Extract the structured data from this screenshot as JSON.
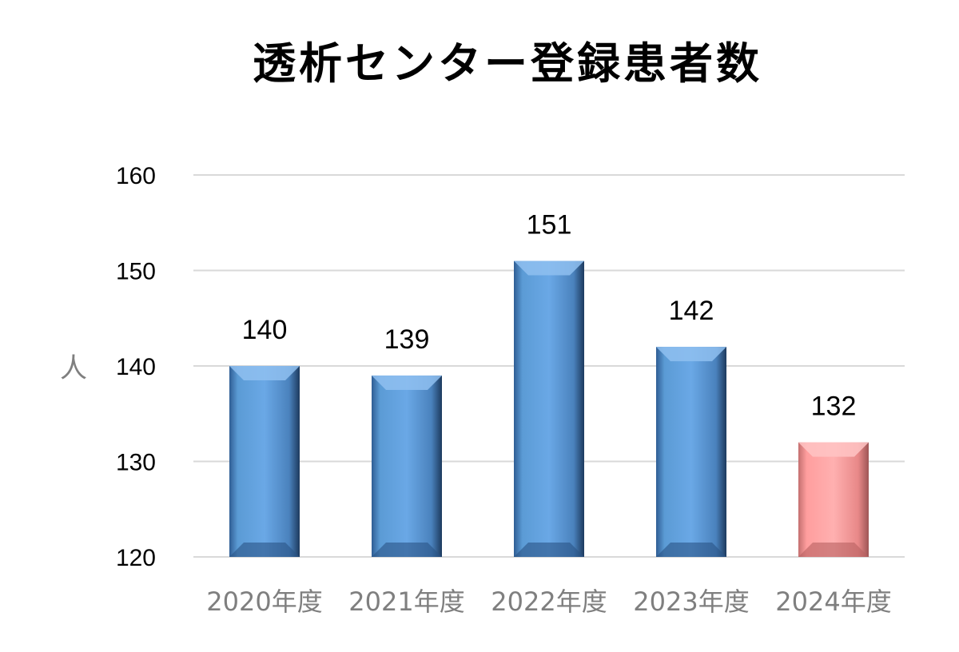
{
  "chart_data": {
    "type": "bar",
    "title": "透析センター登録患者数",
    "ylabel": "人",
    "xlabel": "",
    "categories": [
      "2020年度",
      "2021年度",
      "2022年度",
      "2023年度",
      "2024年度"
    ],
    "values": [
      140,
      139,
      151,
      142,
      132
    ],
    "ylim": [
      120,
      160
    ],
    "yticks": [
      120,
      130,
      140,
      150,
      160
    ],
    "grid": true,
    "colors": {
      "default_bar": "#5b9bd5",
      "highlight_bar": "#ff9e9e",
      "gridline": "#d9d9d9"
    },
    "highlight_index": 4
  }
}
